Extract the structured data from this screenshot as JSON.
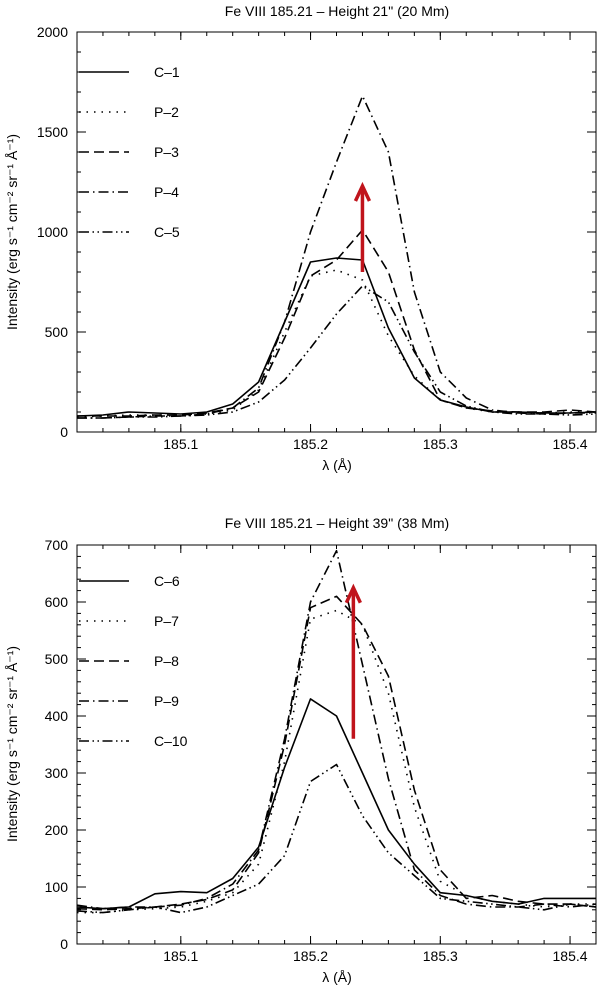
{
  "colors": {
    "arrow": "#c0141c",
    "line": "#000000"
  },
  "chart_data": [
    {
      "type": "line",
      "title": "Fe VIII 185.21 – Height 21\" (20 Mm)",
      "xlabel": "λ (Å)",
      "ylabel": "Intensity (erg s⁻¹ cm⁻² sr⁻¹ Å⁻¹)",
      "xlim": [
        185.02,
        185.42
      ],
      "ylim": [
        0,
        2000
      ],
      "xticks": [
        185.1,
        185.2,
        185.3,
        185.4
      ],
      "xtick_labels": [
        "185.1",
        "185.2",
        "185.3",
        "185.4"
      ],
      "yticks": [
        0,
        500,
        1000,
        1500,
        2000
      ],
      "ytick_labels": [
        "0",
        "500",
        "1000",
        "1500",
        "2000"
      ],
      "legend_position": "top-left",
      "arrow": {
        "x": 185.24,
        "y_from": 800,
        "y_to": 1230
      },
      "x": [
        185.02,
        185.04,
        185.06,
        185.08,
        185.1,
        185.12,
        185.14,
        185.16,
        185.18,
        185.2,
        185.22,
        185.24,
        185.26,
        185.28,
        185.3,
        185.32,
        185.34,
        185.36,
        185.38,
        185.4,
        185.42
      ],
      "series": [
        {
          "name": "C–1",
          "dash": "solid",
          "values": [
            80,
            85,
            100,
            95,
            90,
            100,
            140,
            250,
            550,
            850,
            870,
            860,
            520,
            270,
            160,
            125,
            100,
            100,
            95,
            95,
            100
          ]
        },
        {
          "name": "P–2",
          "dash": "dot",
          "values": [
            75,
            80,
            85,
            85,
            85,
            90,
            110,
            210,
            500,
            780,
            810,
            760,
            480,
            280,
            160,
            120,
            100,
            100,
            95,
            100,
            100
          ]
        },
        {
          "name": "P–3",
          "dash": "dash",
          "values": [
            80,
            80,
            80,
            85,
            85,
            95,
            120,
            200,
            470,
            780,
            860,
            1010,
            800,
            410,
            160,
            120,
            105,
            100,
            100,
            110,
            100
          ]
        },
        {
          "name": "P–4",
          "dash": "dashdot",
          "values": [
            70,
            70,
            75,
            80,
            80,
            90,
            120,
            220,
            550,
            1000,
            1350,
            1680,
            1400,
            700,
            300,
            170,
            110,
            95,
            90,
            95,
            95
          ]
        },
        {
          "name": "C–5",
          "dash": "dashdotdot",
          "values": [
            70,
            70,
            75,
            75,
            80,
            85,
            100,
            150,
            260,
            420,
            590,
            730,
            650,
            400,
            200,
            130,
            100,
            90,
            90,
            85,
            90
          ]
        }
      ]
    },
    {
      "type": "line",
      "title": "Fe VIII 185.21 – Height 39\" (38 Mm)",
      "xlabel": "λ (Å)",
      "ylabel": "Intensity (erg s⁻¹ cm⁻² sr⁻¹ Å⁻¹)",
      "xlim": [
        185.02,
        185.42
      ],
      "ylim": [
        0,
        700
      ],
      "xticks": [
        185.1,
        185.2,
        185.3,
        185.4
      ],
      "xtick_labels": [
        "185.1",
        "185.2",
        "185.3",
        "185.4"
      ],
      "yticks": [
        0,
        100,
        200,
        300,
        400,
        500,
        600,
        700
      ],
      "ytick_labels": [
        "0",
        "100",
        "200",
        "300",
        "400",
        "500",
        "600",
        "700"
      ],
      "legend_position": "top-left",
      "arrow": {
        "x": 185.233,
        "y_from": 360,
        "y_to": 625
      },
      "x": [
        185.02,
        185.04,
        185.06,
        185.08,
        185.1,
        185.12,
        185.14,
        185.16,
        185.18,
        185.2,
        185.22,
        185.24,
        185.26,
        185.28,
        185.3,
        185.32,
        185.34,
        185.36,
        185.38,
        185.4,
        185.42
      ],
      "series": [
        {
          "name": "C–6",
          "dash": "solid",
          "values": [
            65,
            62,
            65,
            88,
            92,
            90,
            115,
            170,
            310,
            430,
            400,
            300,
            200,
            140,
            90,
            85,
            75,
            70,
            80,
            80,
            80
          ]
        },
        {
          "name": "P–7",
          "dash": "dot",
          "values": [
            55,
            55,
            60,
            62,
            65,
            75,
            90,
            140,
            320,
            570,
            585,
            560,
            440,
            240,
            110,
            85,
            75,
            70,
            65,
            70,
            70
          ]
        },
        {
          "name": "P–8",
          "dash": "dash",
          "values": [
            62,
            60,
            62,
            65,
            70,
            78,
            95,
            160,
            350,
            590,
            610,
            560,
            470,
            270,
            130,
            80,
            85,
            75,
            70,
            70,
            65
          ]
        },
        {
          "name": "P–9",
          "dash": "dashdot",
          "values": [
            68,
            62,
            65,
            65,
            68,
            80,
            105,
            165,
            360,
            600,
            690,
            490,
            290,
            130,
            85,
            70,
            65,
            65,
            70,
            65,
            70
          ]
        },
        {
          "name": "C–10",
          "dash": "dashdotdot",
          "values": [
            58,
            55,
            60,
            65,
            55,
            65,
            85,
            105,
            155,
            285,
            315,
            225,
            160,
            120,
            80,
            75,
            70,
            65,
            60,
            70,
            65
          ]
        }
      ]
    }
  ]
}
